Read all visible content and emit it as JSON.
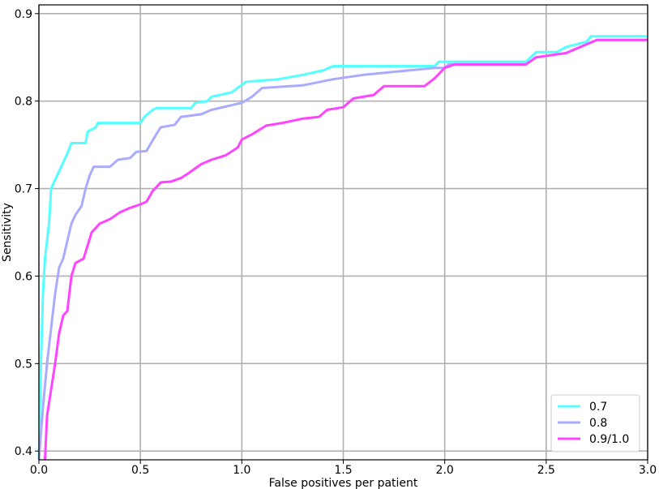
{
  "chart_data": {
    "type": "line",
    "title": "",
    "xlabel": "False positives per patient",
    "ylabel": "Sensitivity",
    "xlim": [
      0.0,
      3.0
    ],
    "ylim": [
      0.39,
      0.91
    ],
    "x_ticks": [
      "0.0",
      "0.5",
      "1.0",
      "1.5",
      "2.0",
      "2.5",
      "3.0"
    ],
    "x_tick_values": [
      0.0,
      0.5,
      1.0,
      1.5,
      2.0,
      2.5,
      3.0
    ],
    "y_ticks": [
      "0.4",
      "0.5",
      "0.6",
      "0.7",
      "0.8",
      "0.9"
    ],
    "y_tick_values": [
      0.4,
      0.5,
      0.6,
      0.7,
      0.8,
      0.9
    ],
    "grid": true,
    "legend_position": "bottom-right",
    "series": [
      {
        "name": "0.7",
        "color": "#55ffff",
        "points": [
          [
            0.0,
            0.39
          ],
          [
            0.01,
            0.5
          ],
          [
            0.02,
            0.58
          ],
          [
            0.03,
            0.62
          ],
          [
            0.05,
            0.66
          ],
          [
            0.06,
            0.7
          ],
          [
            0.08,
            0.71
          ],
          [
            0.1,
            0.72
          ],
          [
            0.12,
            0.73
          ],
          [
            0.14,
            0.74
          ],
          [
            0.16,
            0.752
          ],
          [
            0.23,
            0.752
          ],
          [
            0.24,
            0.765
          ],
          [
            0.28,
            0.77
          ],
          [
            0.29,
            0.775
          ],
          [
            0.5,
            0.775
          ],
          [
            0.52,
            0.782
          ],
          [
            0.56,
            0.79
          ],
          [
            0.58,
            0.792
          ],
          [
            0.75,
            0.792
          ],
          [
            0.77,
            0.798
          ],
          [
            0.83,
            0.8
          ],
          [
            0.85,
            0.805
          ],
          [
            0.95,
            0.81
          ],
          [
            1.02,
            0.822
          ],
          [
            1.18,
            0.825
          ],
          [
            1.3,
            0.83
          ],
          [
            1.4,
            0.835
          ],
          [
            1.45,
            0.84
          ],
          [
            1.95,
            0.84
          ],
          [
            1.97,
            0.845
          ],
          [
            2.4,
            0.845
          ],
          [
            2.45,
            0.856
          ],
          [
            2.55,
            0.856
          ],
          [
            2.6,
            0.862
          ],
          [
            2.7,
            0.868
          ],
          [
            2.72,
            0.874
          ],
          [
            3.0,
            0.874
          ]
        ]
      },
      {
        "name": "0.8",
        "color": "#aaaaff",
        "points": [
          [
            0.0,
            0.39
          ],
          [
            0.02,
            0.45
          ],
          [
            0.04,
            0.5
          ],
          [
            0.06,
            0.54
          ],
          [
            0.08,
            0.58
          ],
          [
            0.1,
            0.61
          ],
          [
            0.12,
            0.62
          ],
          [
            0.14,
            0.64
          ],
          [
            0.16,
            0.66
          ],
          [
            0.18,
            0.67
          ],
          [
            0.21,
            0.68
          ],
          [
            0.23,
            0.7
          ],
          [
            0.25,
            0.715
          ],
          [
            0.27,
            0.725
          ],
          [
            0.35,
            0.725
          ],
          [
            0.39,
            0.733
          ],
          [
            0.45,
            0.735
          ],
          [
            0.48,
            0.742
          ],
          [
            0.53,
            0.743
          ],
          [
            0.56,
            0.755
          ],
          [
            0.6,
            0.77
          ],
          [
            0.67,
            0.773
          ],
          [
            0.7,
            0.782
          ],
          [
            0.8,
            0.785
          ],
          [
            0.85,
            0.79
          ],
          [
            1.0,
            0.798
          ],
          [
            1.05,
            0.805
          ],
          [
            1.1,
            0.815
          ],
          [
            1.3,
            0.818
          ],
          [
            1.45,
            0.825
          ],
          [
            1.6,
            0.83
          ],
          [
            1.95,
            0.838
          ],
          [
            2.0,
            0.838
          ],
          [
            2.02,
            0.842
          ],
          [
            2.4,
            0.842
          ],
          [
            2.45,
            0.85
          ],
          [
            2.6,
            0.855
          ],
          [
            2.7,
            0.865
          ],
          [
            2.75,
            0.87
          ],
          [
            3.0,
            0.87
          ]
        ]
      },
      {
        "name": "0.9/1.0",
        "color": "#ff44ff",
        "points": [
          [
            0.03,
            0.39
          ],
          [
            0.04,
            0.44
          ],
          [
            0.06,
            0.47
          ],
          [
            0.08,
            0.5
          ],
          [
            0.1,
            0.535
          ],
          [
            0.12,
            0.555
          ],
          [
            0.14,
            0.56
          ],
          [
            0.16,
            0.6
          ],
          [
            0.18,
            0.615
          ],
          [
            0.22,
            0.62
          ],
          [
            0.24,
            0.635
          ],
          [
            0.26,
            0.65
          ],
          [
            0.3,
            0.66
          ],
          [
            0.35,
            0.665
          ],
          [
            0.4,
            0.673
          ],
          [
            0.45,
            0.678
          ],
          [
            0.5,
            0.682
          ],
          [
            0.53,
            0.685
          ],
          [
            0.56,
            0.697
          ],
          [
            0.6,
            0.707
          ],
          [
            0.65,
            0.708
          ],
          [
            0.7,
            0.712
          ],
          [
            0.74,
            0.718
          ],
          [
            0.8,
            0.728
          ],
          [
            0.85,
            0.733
          ],
          [
            0.92,
            0.738
          ],
          [
            0.98,
            0.747
          ],
          [
            1.0,
            0.756
          ],
          [
            1.05,
            0.762
          ],
          [
            1.12,
            0.772
          ],
          [
            1.2,
            0.775
          ],
          [
            1.3,
            0.78
          ],
          [
            1.38,
            0.782
          ],
          [
            1.42,
            0.79
          ],
          [
            1.5,
            0.793
          ],
          [
            1.55,
            0.803
          ],
          [
            1.65,
            0.807
          ],
          [
            1.7,
            0.817
          ],
          [
            1.9,
            0.817
          ],
          [
            1.95,
            0.826
          ],
          [
            2.0,
            0.838
          ],
          [
            2.05,
            0.842
          ],
          [
            2.4,
            0.842
          ],
          [
            2.45,
            0.85
          ],
          [
            2.6,
            0.855
          ],
          [
            2.7,
            0.865
          ],
          [
            2.75,
            0.87
          ],
          [
            3.0,
            0.87
          ]
        ]
      }
    ]
  }
}
